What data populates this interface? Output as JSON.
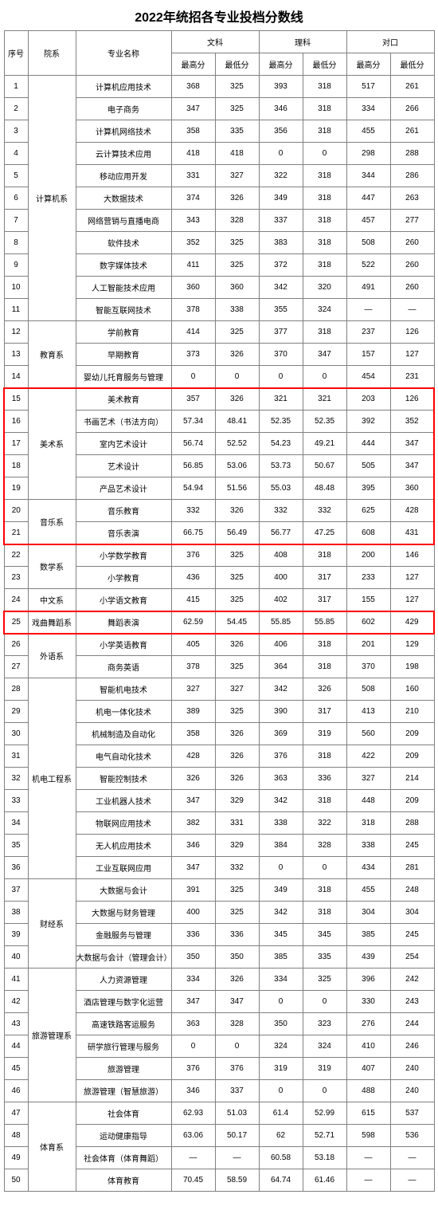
{
  "title": "2022年统招各专业投档分数线",
  "header": {
    "idx": "序号",
    "dept": "院系",
    "major": "专业名称",
    "groups": [
      "文科",
      "理科",
      "对口"
    ],
    "sub": [
      "最高分",
      "最低分"
    ]
  },
  "depts": [
    {
      "name": "计算机系",
      "span": 11,
      "start": 1
    },
    {
      "name": "教育系",
      "span": 3,
      "start": 12
    },
    {
      "name": "美术系",
      "span": 5,
      "start": 15
    },
    {
      "name": "音乐系",
      "span": 2,
      "start": 20
    },
    {
      "name": "数学系",
      "span": 2,
      "start": 22
    },
    {
      "name": "中文系",
      "span": 1,
      "start": 24
    },
    {
      "name": "戏曲舞蹈系",
      "span": 1,
      "start": 25
    },
    {
      "name": "外语系",
      "span": 2,
      "start": 26
    },
    {
      "name": "机电工程系",
      "span": 9,
      "start": 28
    },
    {
      "name": "财经系",
      "span": 4,
      "start": 37
    },
    {
      "name": "旅游管理系",
      "span": 6,
      "start": 41
    },
    {
      "name": "体育系",
      "span": 4,
      "start": 47
    }
  ],
  "rows": [
    {
      "i": 1,
      "m": "计算机应用技术",
      "s": [
        "368",
        "325",
        "393",
        "318",
        "517",
        "261"
      ]
    },
    {
      "i": 2,
      "m": "电子商务",
      "s": [
        "347",
        "325",
        "346",
        "318",
        "334",
        "266"
      ]
    },
    {
      "i": 3,
      "m": "计算机网络技术",
      "s": [
        "358",
        "335",
        "356",
        "318",
        "455",
        "261"
      ]
    },
    {
      "i": 4,
      "m": "云计算技术应用",
      "s": [
        "418",
        "418",
        "0",
        "0",
        "298",
        "288"
      ]
    },
    {
      "i": 5,
      "m": "移动应用开发",
      "s": [
        "331",
        "327",
        "322",
        "318",
        "344",
        "286"
      ]
    },
    {
      "i": 6,
      "m": "大数据技术",
      "s": [
        "374",
        "326",
        "349",
        "318",
        "447",
        "263"
      ]
    },
    {
      "i": 7,
      "m": "网络营销与直播电商",
      "s": [
        "343",
        "328",
        "337",
        "318",
        "457",
        "277"
      ]
    },
    {
      "i": 8,
      "m": "软件技术",
      "s": [
        "352",
        "325",
        "383",
        "318",
        "508",
        "260"
      ]
    },
    {
      "i": 9,
      "m": "数字媒体技术",
      "s": [
        "411",
        "325",
        "372",
        "318",
        "522",
        "260"
      ]
    },
    {
      "i": 10,
      "m": "人工智能技术应用",
      "s": [
        "360",
        "360",
        "342",
        "320",
        "491",
        "260"
      ]
    },
    {
      "i": 11,
      "m": "智能互联网技术",
      "s": [
        "378",
        "338",
        "355",
        "324",
        "—",
        "—"
      ]
    },
    {
      "i": 12,
      "m": "学前教育",
      "s": [
        "414",
        "325",
        "377",
        "318",
        "237",
        "126"
      ]
    },
    {
      "i": 13,
      "m": "早期教育",
      "s": [
        "373",
        "326",
        "370",
        "347",
        "157",
        "127"
      ]
    },
    {
      "i": 14,
      "m": "婴幼儿托育服务与管理",
      "s": [
        "0",
        "0",
        "0",
        "0",
        "454",
        "231"
      ]
    },
    {
      "i": 15,
      "m": "美术教育",
      "s": [
        "357",
        "326",
        "321",
        "321",
        "203",
        "126"
      ]
    },
    {
      "i": 16,
      "m": "书画艺术（书法方向）",
      "s": [
        "57.34",
        "48.41",
        "52.35",
        "52.35",
        "392",
        "352"
      ]
    },
    {
      "i": 17,
      "m": "室内艺术设计",
      "s": [
        "56.74",
        "52.52",
        "54.23",
        "49.21",
        "444",
        "347"
      ]
    },
    {
      "i": 18,
      "m": "艺术设计",
      "s": [
        "56.85",
        "53.06",
        "53.73",
        "50.67",
        "505",
        "347"
      ]
    },
    {
      "i": 19,
      "m": "产品艺术设计",
      "s": [
        "54.94",
        "51.56",
        "55.03",
        "48.48",
        "395",
        "360"
      ]
    },
    {
      "i": 20,
      "m": "音乐教育",
      "s": [
        "332",
        "326",
        "332",
        "332",
        "625",
        "428"
      ]
    },
    {
      "i": 21,
      "m": "音乐表演",
      "s": [
        "66.75",
        "56.49",
        "56.77",
        "47.25",
        "608",
        "431"
      ]
    },
    {
      "i": 22,
      "m": "小学数学教育",
      "s": [
        "376",
        "325",
        "408",
        "318",
        "200",
        "146"
      ]
    },
    {
      "i": 23,
      "m": "小学教育",
      "s": [
        "436",
        "325",
        "400",
        "317",
        "233",
        "127"
      ]
    },
    {
      "i": 24,
      "m": "小学语文教育",
      "s": [
        "415",
        "325",
        "402",
        "317",
        "155",
        "127"
      ]
    },
    {
      "i": 25,
      "m": "舞蹈表演",
      "s": [
        "62.59",
        "54.45",
        "55.85",
        "55.85",
        "602",
        "429"
      ]
    },
    {
      "i": 26,
      "m": "小学英语教育",
      "s": [
        "405",
        "326",
        "406",
        "318",
        "201",
        "129"
      ]
    },
    {
      "i": 27,
      "m": "商务英语",
      "s": [
        "378",
        "325",
        "364",
        "318",
        "370",
        "198"
      ]
    },
    {
      "i": 28,
      "m": "智能机电技术",
      "s": [
        "327",
        "327",
        "342",
        "326",
        "508",
        "160"
      ]
    },
    {
      "i": 29,
      "m": "机电一体化技术",
      "s": [
        "389",
        "325",
        "390",
        "317",
        "413",
        "210"
      ]
    },
    {
      "i": 30,
      "m": "机械制造及自动化",
      "s": [
        "358",
        "326",
        "369",
        "319",
        "560",
        "209"
      ]
    },
    {
      "i": 31,
      "m": "电气自动化技术",
      "s": [
        "428",
        "326",
        "376",
        "318",
        "422",
        "209"
      ]
    },
    {
      "i": 32,
      "m": "智能控制技术",
      "s": [
        "326",
        "326",
        "363",
        "336",
        "327",
        "214"
      ]
    },
    {
      "i": 33,
      "m": "工业机器人技术",
      "s": [
        "347",
        "329",
        "342",
        "318",
        "448",
        "209"
      ]
    },
    {
      "i": 34,
      "m": "物联网应用技术",
      "s": [
        "382",
        "331",
        "338",
        "322",
        "318",
        "288"
      ]
    },
    {
      "i": 35,
      "m": "无人机应用技术",
      "s": [
        "346",
        "329",
        "384",
        "328",
        "338",
        "245"
      ]
    },
    {
      "i": 36,
      "m": "工业互联网应用",
      "s": [
        "347",
        "332",
        "0",
        "0",
        "434",
        "281"
      ]
    },
    {
      "i": 37,
      "m": "大数据与会计",
      "s": [
        "391",
        "325",
        "349",
        "318",
        "455",
        "248"
      ]
    },
    {
      "i": 38,
      "m": "大数据与财务管理",
      "s": [
        "400",
        "325",
        "342",
        "318",
        "304",
        "304"
      ]
    },
    {
      "i": 39,
      "m": "金融服务与管理",
      "s": [
        "336",
        "336",
        "345",
        "345",
        "385",
        "245"
      ]
    },
    {
      "i": 40,
      "m": "大数据与会计（管理会计）",
      "s": [
        "350",
        "350",
        "385",
        "335",
        "439",
        "254"
      ]
    },
    {
      "i": 41,
      "m": "人力资源管理",
      "s": [
        "334",
        "326",
        "334",
        "325",
        "396",
        "242"
      ]
    },
    {
      "i": 42,
      "m": "酒店管理与数字化运营",
      "s": [
        "347",
        "347",
        "0",
        "0",
        "330",
        "243"
      ]
    },
    {
      "i": 43,
      "m": "高速铁路客运服务",
      "s": [
        "363",
        "328",
        "350",
        "323",
        "276",
        "244"
      ]
    },
    {
      "i": 44,
      "m": "研学旅行管理与服务",
      "s": [
        "0",
        "0",
        "324",
        "324",
        "410",
        "246"
      ]
    },
    {
      "i": 45,
      "m": "旅游管理",
      "s": [
        "376",
        "376",
        "319",
        "319",
        "407",
        "240"
      ]
    },
    {
      "i": 46,
      "m": "旅游管理（智慧旅游）",
      "s": [
        "346",
        "337",
        "0",
        "0",
        "488",
        "240"
      ]
    },
    {
      "i": 47,
      "m": "社会体育",
      "s": [
        "62.93",
        "51.03",
        "61.4",
        "52.99",
        "615",
        "537"
      ]
    },
    {
      "i": 48,
      "m": "运动健康指导",
      "s": [
        "63.06",
        "50.17",
        "62",
        "52.71",
        "598",
        "536"
      ]
    },
    {
      "i": 49,
      "m": "社会体育（体育舞蹈）",
      "s": [
        "—",
        "—",
        "60.58",
        "53.18",
        "—",
        "—"
      ]
    },
    {
      "i": 50,
      "m": "体育教育",
      "s": [
        "70.45",
        "58.59",
        "64.74",
        "61.46",
        "—",
        "—"
      ]
    }
  ],
  "highlights": [
    {
      "from": 15,
      "to": 21
    },
    {
      "from": 25,
      "to": 25
    }
  ]
}
